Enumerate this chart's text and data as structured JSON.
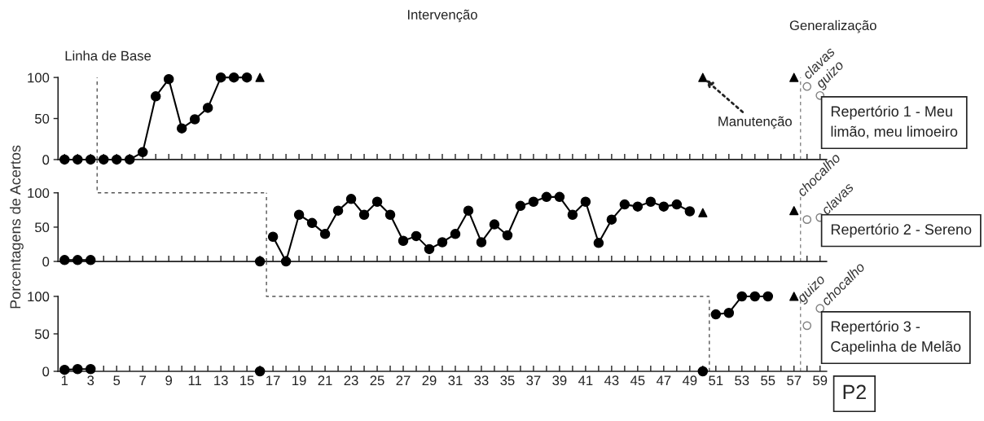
{
  "chart_data": [
    {
      "type": "line",
      "title": "Repertório 1 - Meu limão, meu limoeiro",
      "xlim": [
        0.5,
        59.5
      ],
      "ylim": [
        0,
        100
      ],
      "yticks": [
        0,
        50,
        100
      ],
      "tick_labels": "y",
      "grid": false,
      "legend": false,
      "xticks": [
        1,
        {
          "value": 2,
          "label": null
        },
        3,
        {
          "value": 4,
          "label": null
        },
        5,
        {
          "value": 6,
          "label": null
        },
        7,
        {
          "value": 8,
          "label": null
        },
        9,
        {
          "value": 10,
          "label": null
        },
        11,
        {
          "value": 12,
          "label": null
        },
        13,
        {
          "value": 14,
          "label": null
        },
        15,
        {
          "value": 16,
          "label": null
        },
        17,
        {
          "value": 18,
          "label": null
        },
        19,
        {
          "value": 20,
          "label": null
        },
        21,
        {
          "value": 22,
          "label": null
        },
        23,
        {
          "value": 24,
          "label": null
        },
        25,
        {
          "value": 26,
          "label": null
        },
        27,
        {
          "value": 28,
          "label": null
        },
        29,
        {
          "value": 30,
          "label": null
        },
        31,
        {
          "value": 32,
          "label": null
        },
        33,
        {
          "value": 34,
          "label": null
        },
        35,
        {
          "value": 36,
          "label": null
        },
        37,
        {
          "value": 38,
          "label": null
        },
        39,
        {
          "value": 40,
          "label": null
        },
        41,
        {
          "value": 42,
          "label": null
        },
        43,
        {
          "value": 44,
          "label": null
        },
        45,
        {
          "value": 46,
          "label": null
        },
        47,
        {
          "value": 48,
          "label": null
        },
        49,
        {
          "value": 50,
          "label": null
        },
        51,
        {
          "value": 52,
          "label": null
        },
        53,
        {
          "value": 54,
          "label": null
        },
        55,
        {
          "value": 56,
          "label": null
        },
        57,
        {
          "value": 58,
          "label": null
        },
        59
      ],
      "series": [
        {
          "type": "line",
          "marker": "circle",
          "color": "#000000",
          "x": [
            1,
            2,
            3
          ],
          "values": [
            0,
            0,
            0
          ]
        },
        {
          "type": "line",
          "marker": "circle",
          "color": "#000000",
          "x": [
            4,
            5,
            6,
            7,
            8,
            9,
            10,
            11,
            12,
            13,
            14,
            15
          ],
          "values": [
            0,
            0,
            0,
            9,
            77,
            98,
            38,
            49,
            63,
            100,
            100,
            100
          ]
        },
        {
          "type": "scatter",
          "marker": "triangle",
          "color": "#000000",
          "x": [
            16,
            50,
            57
          ],
          "values": [
            100,
            100,
            100
          ]
        },
        {
          "type": "scatter",
          "marker": "circle",
          "color": "#808080",
          "x": [
            58,
            59
          ],
          "values": [
            89,
            78
          ]
        }
      ],
      "ref_lines": [
        {
          "axis": "x",
          "value": 3.5,
          "line_style": "dashed",
          "color": "#555555"
        },
        {
          "axis": "x",
          "value": 57.5,
          "line_style": "dashed",
          "color": "#888888"
        }
      ],
      "annotations": [
        "Linha de Base",
        "Intervenção",
        "Generalização",
        {
          "text": "Manutenção",
          "x": 50,
          "y": 100
        },
        {
          "text": "clavas",
          "x": 58,
          "y": 89
        },
        {
          "text": "guizo",
          "x": 59,
          "y": 78
        }
      ]
    },
    {
      "type": "line",
      "title": "Repertório 2 - Sereno",
      "ylabel": "Porcentagens de Acertos",
      "xlim": [
        0.5,
        59.5
      ],
      "ylim": [
        0,
        100
      ],
      "yticks": [
        0,
        50,
        100
      ],
      "tick_labels": "y",
      "grid": false,
      "legend": false,
      "xticks": [
        1,
        {
          "value": 2,
          "label": null
        },
        3,
        {
          "value": 4,
          "label": null
        },
        5,
        {
          "value": 6,
          "label": null
        },
        7,
        {
          "value": 8,
          "label": null
        },
        9,
        {
          "value": 10,
          "label": null
        },
        11,
        {
          "value": 12,
          "label": null
        },
        13,
        {
          "value": 14,
          "label": null
        },
        15,
        {
          "value": 16,
          "label": null
        },
        17,
        {
          "value": 18,
          "label": null
        },
        19,
        {
          "value": 20,
          "label": null
        },
        21,
        {
          "value": 22,
          "label": null
        },
        23,
        {
          "value": 24,
          "label": null
        },
        25,
        {
          "value": 26,
          "label": null
        },
        27,
        {
          "value": 28,
          "label": null
        },
        29,
        {
          "value": 30,
          "label": null
        },
        31,
        {
          "value": 32,
          "label": null
        },
        33,
        {
          "value": 34,
          "label": null
        },
        35,
        {
          "value": 36,
          "label": null
        },
        37,
        {
          "value": 38,
          "label": null
        },
        39,
        {
          "value": 40,
          "label": null
        },
        41,
        {
          "value": 42,
          "label": null
        },
        43,
        {
          "value": 44,
          "label": null
        },
        45,
        {
          "value": 46,
          "label": null
        },
        47,
        {
          "value": 48,
          "label": null
        },
        49,
        {
          "value": 50,
          "label": null
        },
        51,
        {
          "value": 52,
          "label": null
        },
        53,
        {
          "value": 54,
          "label": null
        },
        55,
        {
          "value": 56,
          "label": null
        },
        57,
        {
          "value": 58,
          "label": null
        },
        59
      ],
      "series": [
        {
          "type": "line",
          "marker": "circle",
          "color": "#000000",
          "x": [
            1,
            2,
            3
          ],
          "values": [
            2,
            2,
            2
          ]
        },
        {
          "type": "line",
          "marker": "circle",
          "color": "#000000",
          "x": [
            16
          ],
          "values": [
            0
          ]
        },
        {
          "type": "line",
          "marker": "circle",
          "color": "#000000",
          "x": [
            17,
            18,
            19,
            20,
            21,
            22,
            23,
            24,
            25,
            26,
            27,
            28,
            29,
            30,
            31,
            32,
            33,
            34,
            35,
            36,
            37,
            38,
            39,
            40,
            41,
            42,
            43,
            44,
            45,
            46,
            47,
            48,
            49
          ],
          "values": [
            36,
            0,
            68,
            56,
            40,
            74,
            91,
            68,
            87,
            68,
            30,
            37,
            18,
            28,
            40,
            74,
            28,
            54,
            38,
            81,
            87,
            94,
            94,
            68,
            87,
            27,
            61,
            83,
            80,
            87,
            80,
            83,
            73
          ]
        },
        {
          "type": "scatter",
          "marker": "triangle",
          "color": "#000000",
          "x": [
            50,
            57
          ],
          "values": [
            71,
            74
          ]
        },
        {
          "type": "scatter",
          "marker": "circle",
          "color": "#808080",
          "x": [
            58,
            59
          ],
          "values": [
            61,
            64
          ]
        }
      ],
      "ref_lines": [
        {
          "axis": "x",
          "value": 16.5,
          "line_style": "dashed",
          "color": "#555555"
        },
        {
          "axis": "x",
          "value": 57.5,
          "line_style": "dashed",
          "color": "#888888"
        }
      ],
      "annotations": [
        {
          "text": "chocalho",
          "x": 58,
          "y": 61
        },
        {
          "text": "clavas",
          "x": 59,
          "y": 64
        }
      ]
    },
    {
      "type": "line",
      "title": "Repertório 3 - Capelinha de Melão",
      "xlim": [
        0.5,
        59.5
      ],
      "ylim": [
        0,
        100
      ],
      "yticks": [
        0,
        50,
        100
      ],
      "grid": false,
      "legend": false,
      "xticks": [
        1,
        {
          "value": 2,
          "label": null
        },
        3,
        {
          "value": 4,
          "label": null
        },
        5,
        {
          "value": 6,
          "label": null
        },
        7,
        {
          "value": 8,
          "label": null
        },
        9,
        {
          "value": 10,
          "label": null
        },
        11,
        {
          "value": 12,
          "label": null
        },
        13,
        {
          "value": 14,
          "label": null
        },
        15,
        {
          "value": 16,
          "label": null
        },
        17,
        {
          "value": 18,
          "label": null
        },
        19,
        {
          "value": 20,
          "label": null
        },
        21,
        {
          "value": 22,
          "label": null
        },
        23,
        {
          "value": 24,
          "label": null
        },
        25,
        {
          "value": 26,
          "label": null
        },
        27,
        {
          "value": 28,
          "label": null
        },
        29,
        {
          "value": 30,
          "label": null
        },
        31,
        {
          "value": 32,
          "label": null
        },
        33,
        {
          "value": 34,
          "label": null
        },
        35,
        {
          "value": 36,
          "label": null
        },
        37,
        {
          "value": 38,
          "label": null
        },
        39,
        {
          "value": 40,
          "label": null
        },
        41,
        {
          "value": 42,
          "label": null
        },
        43,
        {
          "value": 44,
          "label": null
        },
        45,
        {
          "value": 46,
          "label": null
        },
        47,
        {
          "value": 48,
          "label": null
        },
        49,
        {
          "value": 50,
          "label": null
        },
        51,
        {
          "value": 52,
          "label": null
        },
        53,
        {
          "value": 54,
          "label": null
        },
        55,
        {
          "value": 56,
          "label": null
        },
        57,
        {
          "value": 58,
          "label": null
        },
        59
      ],
      "series": [
        {
          "type": "line",
          "marker": "circle",
          "color": "#000000",
          "x": [
            1,
            2,
            3
          ],
          "values": [
            2,
            3,
            3
          ]
        },
        {
          "type": "line",
          "marker": "circle",
          "color": "#000000",
          "x": [
            16
          ],
          "values": [
            0
          ]
        },
        {
          "type": "line",
          "marker": "circle",
          "color": "#000000",
          "x": [
            50
          ],
          "values": [
            0
          ]
        },
        {
          "type": "line",
          "marker": "circle",
          "color": "#000000",
          "x": [
            51,
            52,
            53,
            54,
            55
          ],
          "values": [
            76,
            78,
            100,
            100,
            100
          ]
        },
        {
          "type": "scatter",
          "marker": "triangle",
          "color": "#000000",
          "x": [
            57
          ],
          "values": [
            100
          ]
        },
        {
          "type": "scatter",
          "marker": "circle",
          "color": "#808080",
          "x": [
            58,
            59
          ],
          "values": [
            61,
            84
          ]
        }
      ],
      "ref_lines": [
        {
          "axis": "x",
          "value": 50.5,
          "line_style": "dashed",
          "color": "#555555"
        },
        {
          "axis": "x",
          "value": 57.5,
          "line_style": "dashed",
          "color": "#888888"
        }
      ],
      "annotations": [
        {
          "text": "guizo",
          "x": 58,
          "y": 61
        },
        {
          "text": "chocalho",
          "x": 59,
          "y": 84
        },
        "P2"
      ]
    }
  ]
}
